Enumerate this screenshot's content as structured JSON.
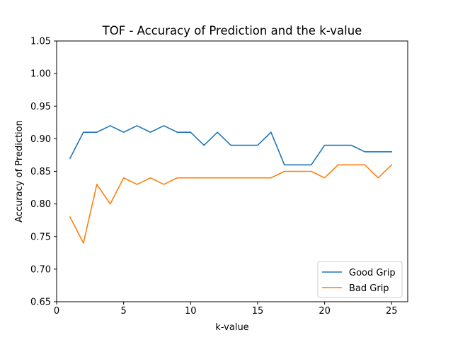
{
  "chart_data": {
    "type": "line",
    "title": "TOF - Accuracy of Prediction and the k-value",
    "xlabel": "k-value",
    "ylabel": "Accuracy of Prediction",
    "xlim": [
      0,
      26.2
    ],
    "ylim": [
      0.65,
      1.05
    ],
    "x_ticks": [
      0,
      5,
      10,
      15,
      20,
      25
    ],
    "x_tick_labels": [
      "0",
      "5",
      "10",
      "15",
      "20",
      "25"
    ],
    "y_ticks": [
      0.65,
      0.7,
      0.75,
      0.8,
      0.85,
      0.9,
      0.95,
      1.0,
      1.05
    ],
    "y_tick_labels": [
      "0.65",
      "0.70",
      "0.75",
      "0.80",
      "0.85",
      "0.90",
      "0.95",
      "1.00",
      "1.05"
    ],
    "grid": false,
    "legend_position": "lower-right",
    "x": [
      1,
      2,
      3,
      4,
      5,
      6,
      7,
      8,
      9,
      10,
      11,
      12,
      13,
      14,
      15,
      16,
      17,
      18,
      19,
      20,
      21,
      22,
      23,
      24,
      25
    ],
    "series": [
      {
        "name": "Good Grip",
        "color": "#1f77b4",
        "values": [
          0.87,
          0.91,
          0.91,
          0.92,
          0.91,
          0.92,
          0.91,
          0.92,
          0.91,
          0.91,
          0.89,
          0.91,
          0.89,
          0.89,
          0.89,
          0.91,
          0.86,
          0.86,
          0.86,
          0.89,
          0.89,
          0.89,
          0.88,
          0.88,
          0.88
        ]
      },
      {
        "name": "Bad Grip",
        "color": "#ff7f0e",
        "values": [
          0.78,
          0.74,
          0.83,
          0.8,
          0.84,
          0.83,
          0.84,
          0.83,
          0.84,
          0.84,
          0.84,
          0.84,
          0.84,
          0.84,
          0.84,
          0.84,
          0.85,
          0.85,
          0.85,
          0.84,
          0.86,
          0.86,
          0.86,
          0.84,
          0.86
        ]
      }
    ]
  }
}
